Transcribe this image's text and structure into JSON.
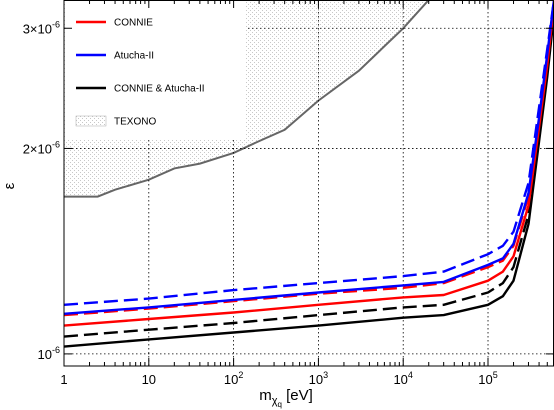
{
  "chart_data": {
    "type": "line",
    "xlabel": "m",
    "xlabel_sub": "χ",
    "xlabel_subsub": "q",
    "xlabel_unit": "[eV]",
    "ylabel": "ε",
    "xscale": "log",
    "yscale": "log",
    "xlim": [
      1,
      600000
    ],
    "ylim": [
      9.6e-07,
      3.3e-06
    ],
    "grid": true,
    "legend_position": "top-left",
    "x_ticks": [
      {
        "value": 1,
        "base": "1",
        "exp": ""
      },
      {
        "value": 10,
        "base": "10",
        "exp": ""
      },
      {
        "value": 100,
        "base": "10",
        "exp": "2"
      },
      {
        "value": 1000,
        "base": "10",
        "exp": "3"
      },
      {
        "value": 10000,
        "base": "10",
        "exp": "4"
      },
      {
        "value": 100000,
        "base": "10",
        "exp": "5"
      }
    ],
    "y_ticks": [
      {
        "value": 1e-06,
        "base": "10",
        "exp": "-6"
      },
      {
        "value": 2e-06,
        "base": "2×10",
        "exp": "-6"
      },
      {
        "value": 3e-06,
        "base": "3×10",
        "exp": "-6"
      }
    ],
    "legend": [
      {
        "label": "CONNIE",
        "color": "#ff0000",
        "style": "line"
      },
      {
        "label": "Atucha-II",
        "color": "#0000ff",
        "style": "line"
      },
      {
        "label": "CONNIE & Atucha-II",
        "color": "#000000",
        "style": "line"
      },
      {
        "label": "TEXONO",
        "color": "#bbbbbb",
        "style": "hatch"
      }
    ],
    "texono_region": {
      "boundary": [
        [
          1,
          1.7e-06
        ],
        [
          2.5,
          1.7e-06
        ],
        [
          4,
          1.74e-06
        ],
        [
          10,
          1.8e-06
        ],
        [
          20,
          1.87e-06
        ],
        [
          40,
          1.9e-06
        ],
        [
          100,
          1.97e-06
        ],
        [
          200,
          2.05e-06
        ],
        [
          400,
          2.13e-06
        ],
        [
          1000,
          2.35e-06
        ],
        [
          3000,
          2.6e-06
        ],
        [
          10000,
          3e-06
        ],
        [
          20000,
          3.3e-06
        ]
      ]
    },
    "series": [
      {
        "name": "CONNIE & Atucha-II",
        "color": "#000000",
        "dash": "solid",
        "x": [
          1,
          10,
          100,
          1000,
          10000,
          30000,
          100000,
          150000,
          200000,
          300000,
          400000,
          500000,
          600000
        ],
        "y": [
          1.025e-06,
          1.05e-06,
          1.075e-06,
          1.1e-06,
          1.13e-06,
          1.14e-06,
          1.18e-06,
          1.215e-06,
          1.28e-06,
          1.55e-06,
          2.05e-06,
          2.55e-06,
          3.15e-06
        ]
      },
      {
        "name": "CONNIE & Atucha-II",
        "color": "#000000",
        "dash": "dashed",
        "x": [
          1,
          10,
          100,
          1000,
          10000,
          30000,
          100000,
          150000,
          200000,
          300000,
          400000,
          500000,
          600000
        ],
        "y": [
          1.06e-06,
          1.085e-06,
          1.11e-06,
          1.14e-06,
          1.17e-06,
          1.18e-06,
          1.23e-06,
          1.27e-06,
          1.34e-06,
          1.6e-06,
          2.1e-06,
          2.6e-06,
          3.2e-06
        ]
      },
      {
        "name": "CONNIE",
        "color": "#ff0000",
        "dash": "solid",
        "x": [
          1,
          10,
          100,
          1000,
          10000,
          30000,
          100000,
          150000,
          200000,
          300000,
          400000,
          500000,
          600000
        ],
        "y": [
          1.1e-06,
          1.125e-06,
          1.15e-06,
          1.18e-06,
          1.21e-06,
          1.22e-06,
          1.28e-06,
          1.32e-06,
          1.39e-06,
          1.65e-06,
          2.15e-06,
          2.65e-06,
          3.25e-06
        ]
      },
      {
        "name": "CONNIE",
        "color": "#ff0000",
        "dash": "dashed",
        "x": [
          1,
          10,
          100,
          1000,
          10000,
          30000,
          100000,
          150000,
          200000,
          300000,
          400000,
          500000,
          600000
        ],
        "y": [
          1.14e-06,
          1.165e-06,
          1.195e-06,
          1.225e-06,
          1.25e-06,
          1.27e-06,
          1.34e-06,
          1.37e-06,
          1.44e-06,
          1.7e-06,
          2.2e-06,
          2.7e-06,
          3.3e-06
        ]
      },
      {
        "name": "Atucha-II",
        "color": "#0000ff",
        "dash": "solid",
        "x": [
          1,
          10,
          100,
          1000,
          10000,
          30000,
          100000,
          150000,
          200000,
          300000,
          400000,
          500000,
          600000
        ],
        "y": [
          1.145e-06,
          1.17e-06,
          1.2e-06,
          1.23e-06,
          1.26e-06,
          1.275e-06,
          1.35e-06,
          1.38e-06,
          1.45e-06,
          1.72e-06,
          2.22e-06,
          2.75e-06,
          3.3e-06
        ]
      },
      {
        "name": "Atucha-II",
        "color": "#0000ff",
        "dash": "dashed",
        "x": [
          1,
          10,
          100,
          1000,
          10000,
          30000,
          100000,
          150000,
          200000,
          300000,
          400000,
          500000,
          600000
        ],
        "y": [
          1.18e-06,
          1.205e-06,
          1.24e-06,
          1.27e-06,
          1.3e-06,
          1.32e-06,
          1.4e-06,
          1.44e-06,
          1.51e-06,
          1.78e-06,
          2.3e-06,
          2.8e-06,
          3.3e-06
        ]
      }
    ]
  }
}
